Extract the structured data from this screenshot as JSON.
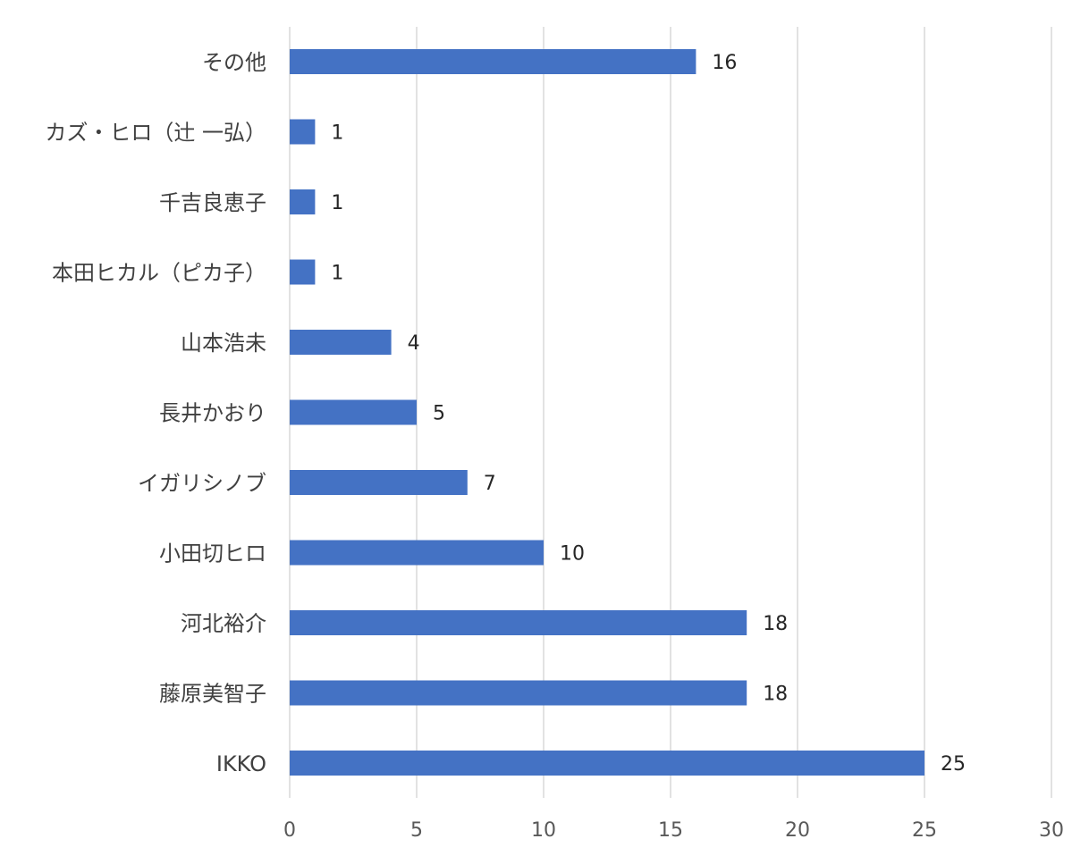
{
  "chart_data": {
    "type": "bar",
    "orientation": "horizontal",
    "categories": [
      "その他",
      "カズ・ヒロ（辻 一弘）",
      "千吉良恵子",
      "本田ヒカル（ピカ子）",
      "山本浩未",
      "長井かおり",
      "イガリシノブ",
      "小田切ヒロ",
      "河北裕介",
      "藤原美智子",
      "IKKO"
    ],
    "values": [
      16,
      1,
      1,
      1,
      4,
      5,
      7,
      10,
      18,
      18,
      25
    ],
    "data_labels": [
      "16",
      "1",
      "1",
      "1",
      "4",
      "5",
      "7",
      "10",
      "18",
      "18",
      "25"
    ],
    "x_ticks": [
      "0",
      "5",
      "10",
      "15",
      "20",
      "25",
      "30"
    ],
    "xlim": [
      0,
      30
    ],
    "title": "",
    "xlabel": "",
    "ylabel": "",
    "grid": true,
    "legend": "none",
    "bar_color": "#4472c4"
  }
}
